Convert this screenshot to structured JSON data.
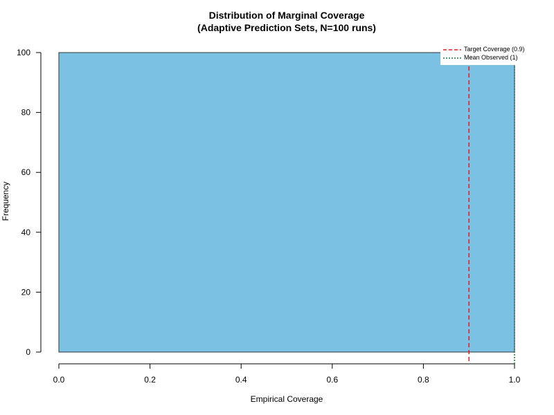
{
  "chart_data": {
    "type": "bar",
    "title": "Distribution of Marginal Coverage",
    "subtitle": "(Adaptive Prediction Sets, N=100 runs)",
    "xlabel": "Empirical Coverage",
    "ylabel": "Frequency",
    "xlim": [
      0,
      1
    ],
    "ylim": [
      0,
      100
    ],
    "xticks": [
      "0.0",
      "0.2",
      "0.4",
      "0.6",
      "0.8",
      "1.0"
    ],
    "yticks": [
      "0",
      "20",
      "40",
      "60",
      "80",
      "100"
    ],
    "bins": [
      {
        "x_start": 0.0,
        "x_end": 1.0,
        "count": 100
      }
    ],
    "bar_color": "#7ac1e4",
    "reference_lines": [
      {
        "label": "Target Coverage (0.9)",
        "x": 0.9,
        "color": "#e41a1c",
        "style": "dashed"
      },
      {
        "label": "Mean Observed (1)",
        "x": 1.0,
        "color": "#1b7837",
        "style": "dotted"
      }
    ],
    "legend_position": "top-right",
    "grid": false
  }
}
